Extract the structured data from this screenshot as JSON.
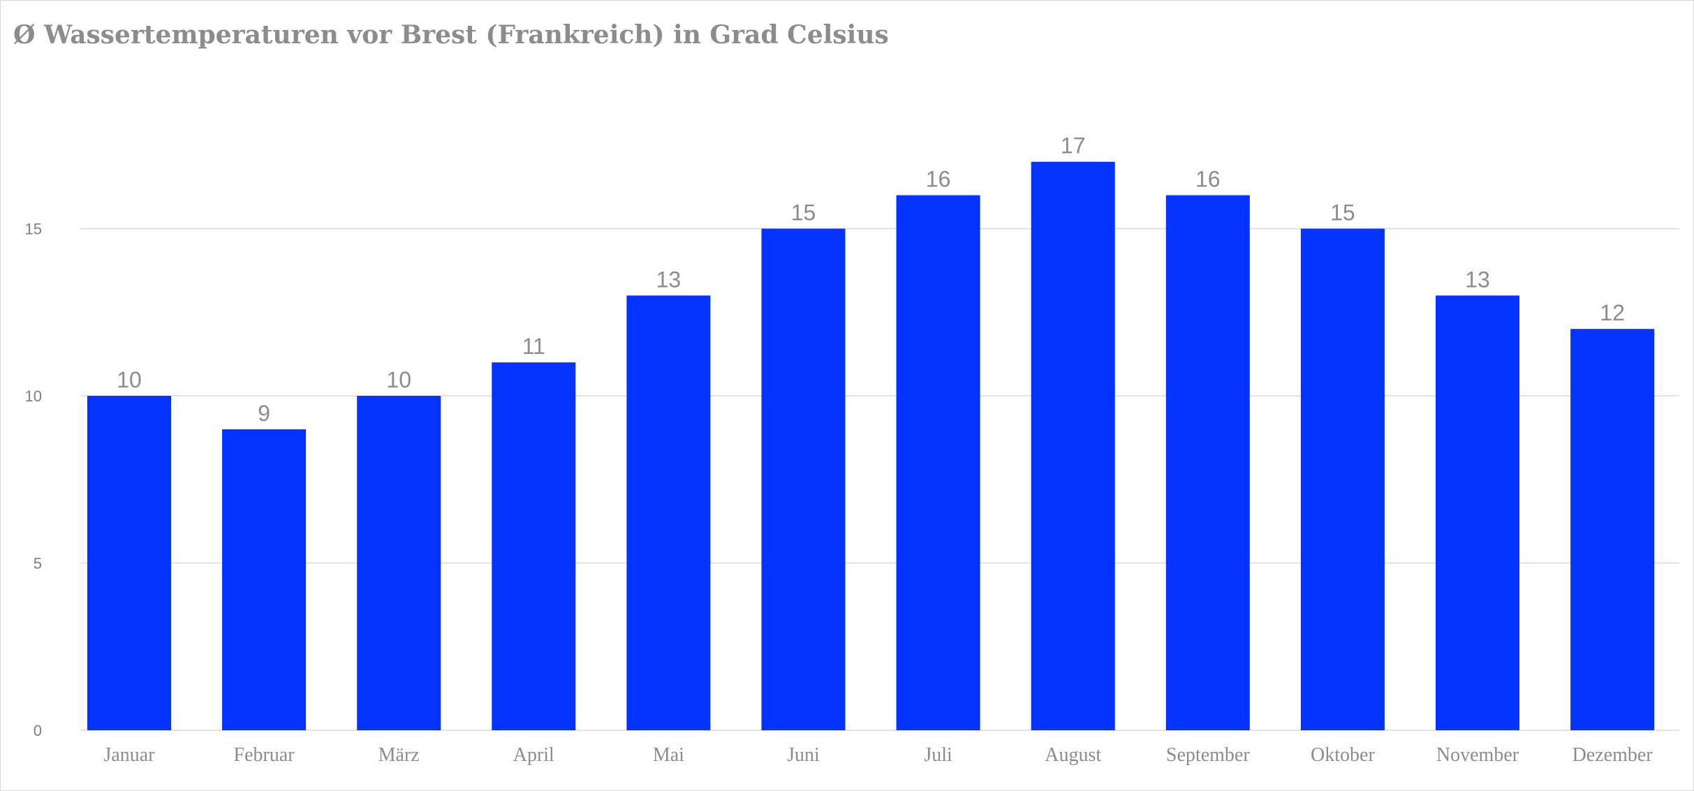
{
  "chart_data": {
    "type": "bar",
    "title": "Ø Wassertemperaturen vor Brest (Frankreich) in Grad Celsius",
    "xlabel": "",
    "ylabel": "",
    "categories": [
      "Januar",
      "Februar",
      "März",
      "April",
      "Mai",
      "Juni",
      "Juli",
      "August",
      "September",
      "Oktober",
      "November",
      "Dezember"
    ],
    "values": [
      10,
      9,
      10,
      11,
      13,
      15,
      16,
      17,
      16,
      15,
      13,
      12
    ],
    "ylim": [
      0,
      17
    ],
    "yticks": [
      0,
      5,
      10,
      15
    ],
    "grid": true,
    "data_labels": true,
    "bar_color": "#0433ff",
    "gridline_color": "#d9d9d9",
    "text_color": "#8c8c8c"
  }
}
